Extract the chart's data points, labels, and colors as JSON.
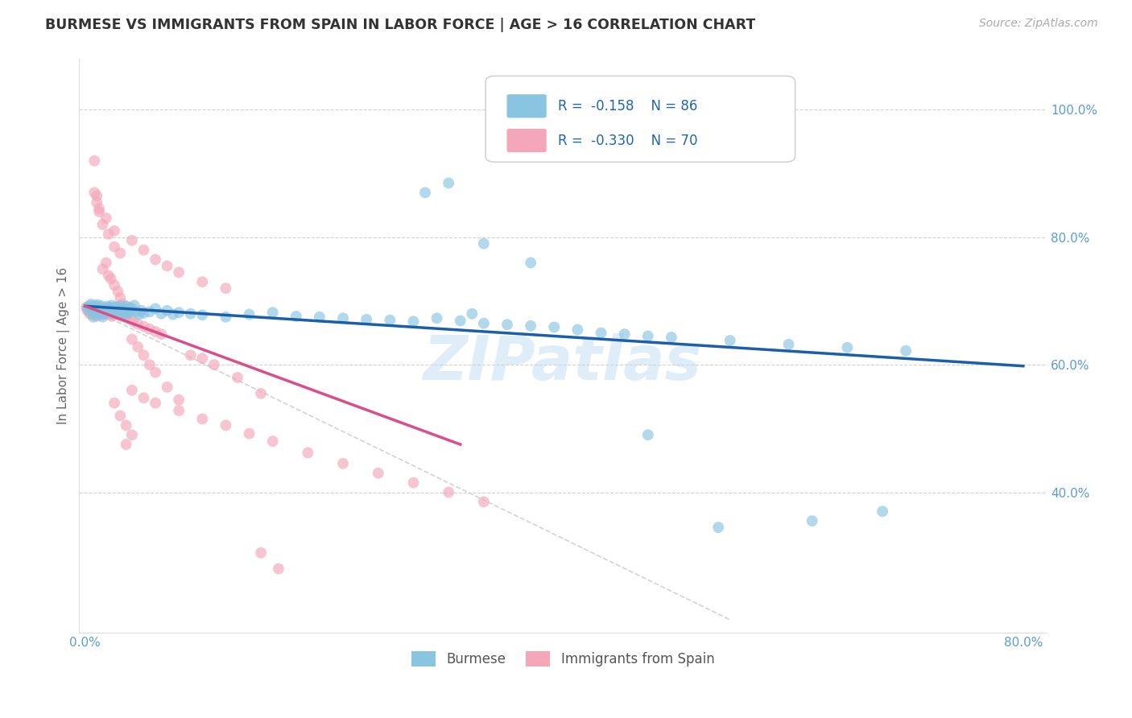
{
  "title": "BURMESE VS IMMIGRANTS FROM SPAIN IN LABOR FORCE | AGE > 16 CORRELATION CHART",
  "source_text": "Source: ZipAtlas.com",
  "ylabel": "In Labor Force | Age > 16",
  "xlim": [
    -0.005,
    0.82
  ],
  "ylim": [
    0.18,
    1.08
  ],
  "xticks": [
    0.0,
    0.1,
    0.2,
    0.3,
    0.4,
    0.5,
    0.6,
    0.7,
    0.8
  ],
  "xticklabels": [
    "0.0%",
    "",
    "",
    "",
    "",
    "",
    "",
    "",
    "80.0%"
  ],
  "yticks": [
    0.4,
    0.6,
    0.8,
    1.0
  ],
  "yticklabels": [
    "40.0%",
    "60.0%",
    "80.0%",
    "100.0%"
  ],
  "legend_r1": "R =  -0.158",
  "legend_n1": "N = 86",
  "legend_r2": "R =  -0.330",
  "legend_n2": "N = 70",
  "legend_label1": "Burmese",
  "legend_label2": "Immigrants from Spain",
  "scatter_blue_x": [
    0.002,
    0.003,
    0.004,
    0.005,
    0.006,
    0.007,
    0.008,
    0.008,
    0.009,
    0.01,
    0.01,
    0.011,
    0.012,
    0.013,
    0.014,
    0.015,
    0.016,
    0.017,
    0.018,
    0.019,
    0.02,
    0.021,
    0.022,
    0.023,
    0.024,
    0.025,
    0.026,
    0.027,
    0.028,
    0.03,
    0.031,
    0.032,
    0.033,
    0.034,
    0.035,
    0.036,
    0.037,
    0.038,
    0.039,
    0.04,
    0.042,
    0.044,
    0.046,
    0.048,
    0.05,
    0.055,
    0.06,
    0.065,
    0.07,
    0.075,
    0.08,
    0.09,
    0.1,
    0.12,
    0.14,
    0.16,
    0.18,
    0.2,
    0.22,
    0.24,
    0.26,
    0.28,
    0.3,
    0.32,
    0.34,
    0.36,
    0.38,
    0.4,
    0.42,
    0.44,
    0.46,
    0.48,
    0.5,
    0.55,
    0.6,
    0.65,
    0.7,
    0.29,
    0.31,
    0.34,
    0.38,
    0.33,
    0.48,
    0.54,
    0.62,
    0.68
  ],
  "scatter_blue_y": [
    0.69,
    0.685,
    0.692,
    0.695,
    0.688,
    0.675,
    0.693,
    0.683,
    0.679,
    0.691,
    0.687,
    0.694,
    0.682,
    0.688,
    0.692,
    0.675,
    0.68,
    0.685,
    0.688,
    0.692,
    0.683,
    0.69,
    0.686,
    0.693,
    0.68,
    0.687,
    0.691,
    0.685,
    0.688,
    0.692,
    0.683,
    0.688,
    0.679,
    0.685,
    0.692,
    0.68,
    0.686,
    0.69,
    0.684,
    0.688,
    0.693,
    0.683,
    0.679,
    0.685,
    0.681,
    0.683,
    0.688,
    0.68,
    0.685,
    0.679,
    0.682,
    0.68,
    0.678,
    0.675,
    0.679,
    0.682,
    0.676,
    0.675,
    0.673,
    0.671,
    0.67,
    0.668,
    0.673,
    0.669,
    0.665,
    0.663,
    0.661,
    0.659,
    0.655,
    0.65,
    0.648,
    0.645,
    0.643,
    0.638,
    0.632,
    0.627,
    0.622,
    0.87,
    0.885,
    0.79,
    0.76,
    0.68,
    0.49,
    0.345,
    0.355,
    0.37
  ],
  "scatter_pink_x": [
    0.001,
    0.002,
    0.003,
    0.004,
    0.005,
    0.006,
    0.007,
    0.008,
    0.009,
    0.01,
    0.011,
    0.012,
    0.013,
    0.014,
    0.015,
    0.016,
    0.017,
    0.018,
    0.019,
    0.02,
    0.021,
    0.022,
    0.023,
    0.024,
    0.025,
    0.027,
    0.029,
    0.031,
    0.033,
    0.035,
    0.038,
    0.041,
    0.045,
    0.05,
    0.055,
    0.06,
    0.065,
    0.015,
    0.018,
    0.02,
    0.022,
    0.025,
    0.028,
    0.03,
    0.032,
    0.04,
    0.045,
    0.05,
    0.055,
    0.06,
    0.07,
    0.08,
    0.09,
    0.1,
    0.11,
    0.13,
    0.15,
    0.04,
    0.05,
    0.06,
    0.08,
    0.1,
    0.12,
    0.14,
    0.16,
    0.19,
    0.22,
    0.25,
    0.28,
    0.31,
    0.34
  ],
  "scatter_pink_y": [
    0.69,
    0.685,
    0.688,
    0.68,
    0.686,
    0.679,
    0.683,
    0.688,
    0.68,
    0.676,
    0.684,
    0.679,
    0.683,
    0.688,
    0.679,
    0.685,
    0.68,
    0.683,
    0.688,
    0.679,
    0.685,
    0.68,
    0.676,
    0.683,
    0.688,
    0.679,
    0.68,
    0.676,
    0.68,
    0.674,
    0.672,
    0.668,
    0.664,
    0.66,
    0.656,
    0.652,
    0.648,
    0.75,
    0.76,
    0.74,
    0.735,
    0.725,
    0.715,
    0.705,
    0.695,
    0.64,
    0.628,
    0.615,
    0.6,
    0.588,
    0.565,
    0.545,
    0.615,
    0.61,
    0.6,
    0.58,
    0.555,
    0.56,
    0.548,
    0.54,
    0.528,
    0.515,
    0.505,
    0.492,
    0.48,
    0.462,
    0.445,
    0.43,
    0.415,
    0.4,
    0.385
  ],
  "scatter_pink_outliers_x": [
    0.008,
    0.01,
    0.012,
    0.015,
    0.02,
    0.025,
    0.03,
    0.008,
    0.01,
    0.012,
    0.018,
    0.025,
    0.04,
    0.05,
    0.06,
    0.07,
    0.08,
    0.1,
    0.12,
    0.025,
    0.03,
    0.035,
    0.04,
    0.035,
    0.15,
    0.165
  ],
  "scatter_pink_outliers_y": [
    0.92,
    0.865,
    0.84,
    0.82,
    0.805,
    0.785,
    0.775,
    0.87,
    0.855,
    0.845,
    0.83,
    0.81,
    0.795,
    0.78,
    0.765,
    0.755,
    0.745,
    0.73,
    0.72,
    0.54,
    0.52,
    0.505,
    0.49,
    0.475,
    0.305,
    0.28
  ],
  "blue_line_x": [
    0.0,
    0.8
  ],
  "blue_line_y": [
    0.692,
    0.598
  ],
  "pink_line_x": [
    0.0,
    0.32
  ],
  "pink_line_y": [
    0.692,
    0.475
  ],
  "dashed_line_x": [
    0.0,
    0.55
  ],
  "dashed_line_y": [
    0.692,
    0.2
  ],
  "watermark": "ZIPatlas",
  "blue_color": "#89c4e1",
  "pink_color": "#f4a7b9",
  "blue_line_color": "#1a5fa8",
  "pink_line_color": "#d94f8a",
  "dashed_line_color": "#c8c8c8",
  "bg_color": "#ffffff",
  "grid_color": "#cccccc",
  "title_color": "#333333",
  "axis_label_color": "#666666",
  "tick_color": "#5b9bd5",
  "legend_r_color": "#2166ac"
}
